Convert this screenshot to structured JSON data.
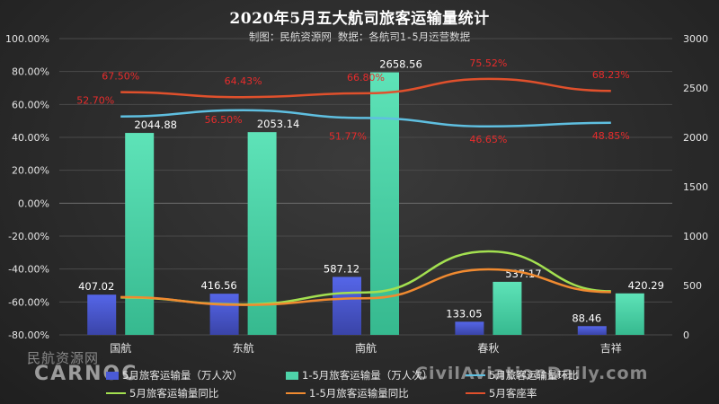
{
  "chart_data": {
    "type": "bar",
    "title": "2020年5月五大航司旅客运输量统计",
    "subtitle": "制图：民航资源网 数据：各航司1-5月运营数据",
    "categories": [
      "国航",
      "东航",
      "南航",
      "春秋",
      "吉祥"
    ],
    "left_axis": {
      "ticks": [
        "100.00%",
        "80.00%",
        "60.00%",
        "40.00%",
        "20.00%",
        "0.00%",
        "-20.00%",
        "-40.00%",
        "-60.00%",
        "-80.00%"
      ],
      "ylim": [
        -80,
        100
      ]
    },
    "right_axis": {
      "ticks": [
        "3000",
        "2500",
        "2000",
        "1500",
        "1000",
        "500",
        "0"
      ],
      "ylim": [
        0,
        3000
      ]
    },
    "series": [
      {
        "name": "5月旅客运输量（万人次）",
        "type": "bar",
        "axis": "right",
        "color": "#4a5ad6",
        "values": [
          407.02,
          416.56,
          587.12,
          133.05,
          88.46
        ],
        "labels": [
          "407.02",
          "416.56",
          "587.12",
          "133.05",
          "88.46"
        ]
      },
      {
        "name": "1-5月旅客运输量（万人次）",
        "type": "bar",
        "axis": "right",
        "color": "#4ed3a9",
        "values": [
          2044.88,
          2053.14,
          2658.56,
          537.17,
          420.29
        ],
        "labels": [
          "2044.88",
          "2053.14",
          "2658.56",
          "537.17",
          "420.29"
        ]
      },
      {
        "name": "5月旅客运输量环比",
        "type": "line",
        "axis": "left",
        "color": "#5fbfe0",
        "values": [
          52.7,
          56.5,
          51.77,
          46.65,
          48.85
        ],
        "labels": [
          "52.70%",
          "56.50%",
          "51.77%",
          "46.65%",
          "48.85%"
        ]
      },
      {
        "name": "5月旅客运输量同比",
        "type": "line",
        "axis": "left",
        "color": "#a3e050",
        "values": [
          -57.3,
          -61.5,
          -54.2,
          -29.3,
          -53.5
        ]
      },
      {
        "name": "1-5月旅客运输量同比",
        "type": "line",
        "axis": "left",
        "color": "#f08a30",
        "values": [
          -57.0,
          -61.8,
          -57.8,
          -40.2,
          -54.0
        ]
      },
      {
        "name": "5月客座率",
        "type": "line",
        "axis": "left",
        "color": "#e0502c",
        "values": [
          67.5,
          64.43,
          66.8,
          75.52,
          68.23
        ],
        "labels": [
          "67.50%",
          "64.43%",
          "66.80%",
          "75.52%",
          "68.23%"
        ]
      }
    ],
    "legend_position": "bottom",
    "grid": true
  },
  "legend": {
    "item0": "5月旅客运输量（万人次）",
    "item1": "1-5月旅客运输量（万人次）",
    "item2": "5月旅客运输量环比",
    "item3": "5月旅客运输量同比",
    "item4": "1-5月旅客运输量同比",
    "item5": "5月客座率"
  },
  "watermarks": {
    "left_cn": "民航资源网",
    "left_logo": "CARNOC",
    "right": "CivilAviationDaily.com"
  }
}
